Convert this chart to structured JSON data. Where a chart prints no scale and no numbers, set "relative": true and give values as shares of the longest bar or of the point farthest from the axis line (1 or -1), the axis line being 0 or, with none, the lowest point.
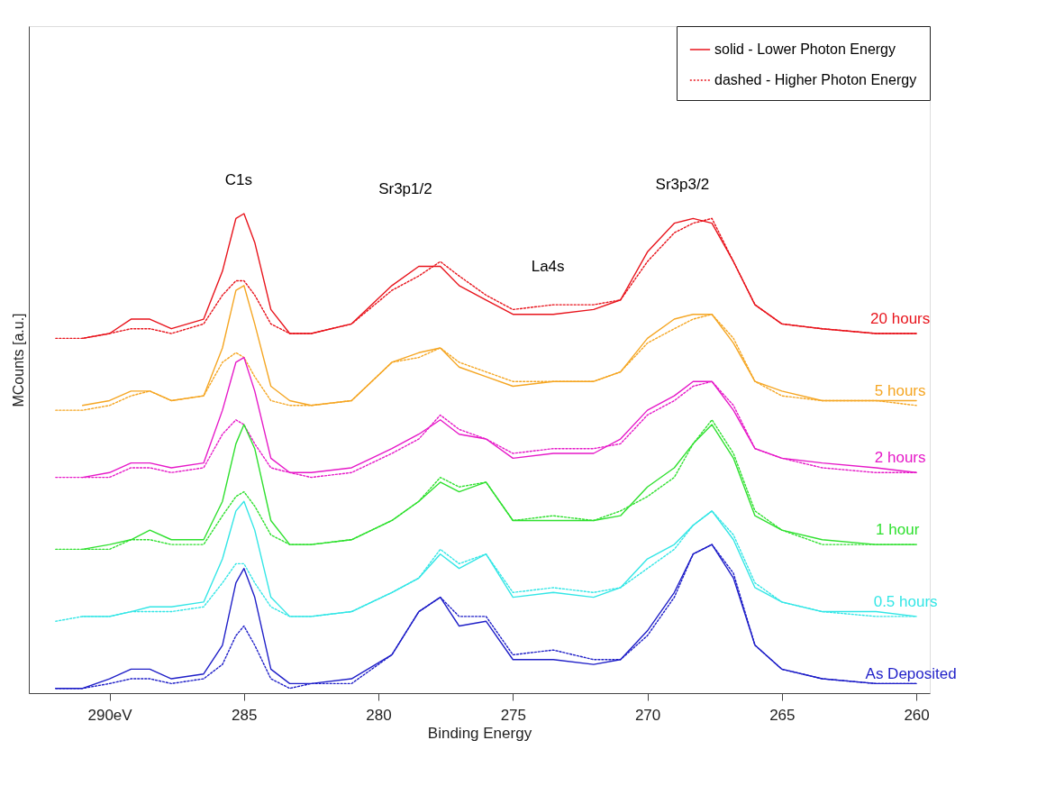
{
  "chart_data": {
    "type": "line",
    "relative": true,
    "xlabel": "Binding Energy",
    "ylabel": "MCounts [a.u.]",
    "xlim": [
      293,
      259.5
    ],
    "xticks": [
      {
        "value": 290,
        "label": "290eV"
      },
      285,
      280,
      275,
      270,
      265,
      260
    ],
    "grid": false,
    "legend": "top right",
    "x": [
      292,
      291,
      290,
      289.2,
      288.5,
      287.7,
      286.5,
      285.8,
      285.3,
      285,
      284.6,
      284,
      283.3,
      282.5,
      281,
      279.5,
      278.5,
      277.7,
      277,
      276,
      275,
      273.5,
      272,
      271,
      270,
      269,
      268.3,
      267.6,
      266.8,
      266,
      265,
      263.5,
      261.5,
      260
    ],
    "series": [
      {
        "name": "solid - Lower Photon Energy",
        "color": "#e8141c",
        "line_style": "solid",
        "values": [
          null,
          0.74,
          0.75,
          0.78,
          0.78,
          0.76,
          0.78,
          0.88,
          0.99,
          1.0,
          0.94,
          0.8,
          0.75,
          0.75,
          0.77,
          0.85,
          0.89,
          0.89,
          0.85,
          0.82,
          0.79,
          0.79,
          0.8,
          0.82,
          0.92,
          0.98,
          0.99,
          0.98,
          0.9,
          0.81,
          0.77,
          0.76,
          0.75,
          0.75
        ]
      },
      {
        "name": "dashed - Higher Photon Energy",
        "color": "#e8141c",
        "line_style": "dotted",
        "values": [
          0.74,
          0.74,
          0.75,
          0.76,
          0.76,
          0.75,
          0.77,
          0.83,
          0.86,
          0.86,
          0.83,
          0.77,
          0.75,
          0.75,
          0.77,
          0.84,
          0.87,
          0.9,
          0.87,
          0.83,
          0.8,
          0.81,
          0.81,
          0.82,
          0.9,
          0.96,
          0.98,
          0.99,
          0.9,
          0.81,
          0.77,
          0.76,
          0.75,
          0.75
        ]
      },
      {
        "color": "#f5a623",
        "line_style": "solid",
        "values": [
          null,
          0.6,
          0.61,
          0.63,
          0.63,
          0.61,
          0.62,
          0.72,
          0.84,
          0.85,
          0.77,
          0.64,
          0.61,
          0.6,
          0.61,
          0.69,
          0.71,
          0.72,
          0.68,
          0.66,
          0.64,
          0.65,
          0.65,
          0.67,
          0.74,
          0.78,
          0.79,
          0.79,
          0.73,
          0.65,
          0.63,
          0.61,
          0.61,
          0.61
        ]
      },
      {
        "color": "#f5a623",
        "line_style": "dotted",
        "values": [
          0.59,
          0.59,
          0.6,
          0.62,
          0.63,
          0.61,
          0.62,
          0.69,
          0.71,
          0.7,
          0.66,
          0.61,
          0.6,
          0.6,
          0.61,
          0.69,
          0.7,
          0.72,
          0.69,
          0.67,
          0.65,
          0.65,
          0.65,
          0.67,
          0.73,
          0.76,
          0.78,
          0.79,
          0.74,
          0.65,
          0.62,
          0.61,
          0.61,
          0.6
        ]
      },
      {
        "color": "#e619c8",
        "line_style": "solid",
        "values": [
          null,
          0.45,
          0.46,
          0.48,
          0.48,
          0.47,
          0.48,
          0.59,
          0.69,
          0.7,
          0.63,
          0.49,
          0.46,
          0.46,
          0.47,
          0.51,
          0.54,
          0.57,
          0.54,
          0.53,
          0.49,
          0.5,
          0.5,
          0.53,
          0.59,
          0.62,
          0.65,
          0.65,
          0.59,
          0.51,
          0.49,
          0.48,
          0.47,
          0.46
        ]
      },
      {
        "color": "#e619c8",
        "line_style": "dotted",
        "values": [
          0.45,
          0.45,
          0.45,
          0.47,
          0.47,
          0.46,
          0.47,
          0.54,
          0.57,
          0.56,
          0.52,
          0.47,
          0.46,
          0.45,
          0.46,
          0.5,
          0.53,
          0.58,
          0.55,
          0.53,
          0.5,
          0.51,
          0.51,
          0.52,
          0.58,
          0.61,
          0.64,
          0.65,
          0.6,
          0.51,
          0.49,
          0.47,
          0.46,
          0.46
        ]
      },
      {
        "color": "#2fe02f",
        "line_style": "solid",
        "values": [
          null,
          0.3,
          0.31,
          0.32,
          0.34,
          0.32,
          0.32,
          0.4,
          0.52,
          0.56,
          0.51,
          0.36,
          0.31,
          0.31,
          0.32,
          0.36,
          0.4,
          0.44,
          0.42,
          0.44,
          0.36,
          0.36,
          0.36,
          0.37,
          0.43,
          0.47,
          0.52,
          0.56,
          0.49,
          0.37,
          0.34,
          0.32,
          0.31,
          0.31
        ]
      },
      {
        "color": "#2fe02f",
        "line_style": "dotted",
        "values": [
          0.3,
          0.3,
          0.3,
          0.32,
          0.32,
          0.31,
          0.31,
          0.37,
          0.41,
          0.42,
          0.39,
          0.33,
          0.31,
          0.31,
          0.32,
          0.36,
          0.4,
          0.45,
          0.43,
          0.44,
          0.36,
          0.37,
          0.36,
          0.38,
          0.41,
          0.45,
          0.52,
          0.57,
          0.5,
          0.38,
          0.34,
          0.31,
          0.31,
          0.31
        ]
      },
      {
        "color": "#33e6e6",
        "line_style": "solid",
        "values": [
          null,
          0.16,
          0.16,
          0.17,
          0.18,
          0.18,
          0.19,
          0.28,
          0.38,
          0.4,
          0.34,
          0.2,
          0.16,
          0.16,
          0.17,
          0.21,
          0.24,
          0.29,
          0.26,
          0.29,
          0.2,
          0.21,
          0.2,
          0.22,
          0.28,
          0.31,
          0.35,
          0.38,
          0.32,
          0.22,
          0.19,
          0.17,
          0.17,
          0.16
        ]
      },
      {
        "color": "#33e6e6",
        "line_style": "dotted",
        "values": [
          0.15,
          0.16,
          0.16,
          0.17,
          0.17,
          0.17,
          0.18,
          0.23,
          0.27,
          0.27,
          0.23,
          0.18,
          0.16,
          0.16,
          0.17,
          0.21,
          0.24,
          0.3,
          0.27,
          0.29,
          0.21,
          0.22,
          0.21,
          0.22,
          0.26,
          0.3,
          0.35,
          0.38,
          0.33,
          0.23,
          0.19,
          0.17,
          0.16,
          0.16
        ]
      },
      {
        "color": "#1f1fc8",
        "line_style": "solid",
        "values": [
          0.01,
          0.01,
          0.03,
          0.05,
          0.05,
          0.03,
          0.04,
          0.1,
          0.23,
          0.26,
          0.2,
          0.05,
          0.02,
          0.02,
          0.03,
          0.08,
          0.17,
          0.2,
          0.14,
          0.15,
          0.07,
          0.07,
          0.06,
          0.07,
          0.13,
          0.21,
          0.29,
          0.31,
          0.24,
          0.1,
          0.05,
          0.03,
          0.02,
          0.02
        ]
      },
      {
        "color": "#1f1fc8",
        "line_style": "dotted",
        "values": [
          0.01,
          0.01,
          0.02,
          0.03,
          0.03,
          0.02,
          0.03,
          0.06,
          0.12,
          0.14,
          0.1,
          0.03,
          0.01,
          0.02,
          0.02,
          0.08,
          0.17,
          0.2,
          0.16,
          0.16,
          0.08,
          0.09,
          0.07,
          0.07,
          0.12,
          0.2,
          0.29,
          0.31,
          0.25,
          0.1,
          0.05,
          0.03,
          0.02,
          0.02
        ]
      }
    ],
    "annotations": [
      "C1s",
      "Sr3p1/2",
      "La4s",
      "Sr3p3/2",
      "20 hours",
      "5 hours",
      "2 hours",
      "1 hour",
      "0.5 hours",
      "As Deposited"
    ]
  }
}
